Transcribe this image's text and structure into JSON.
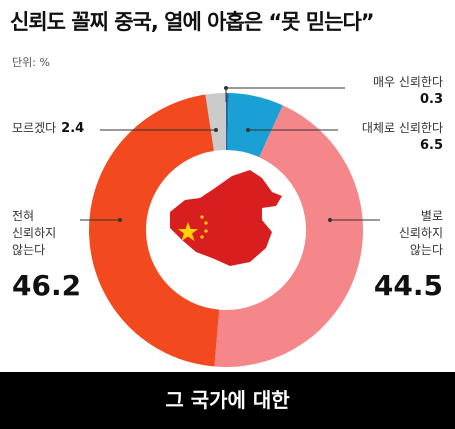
{
  "chart_data": {
    "type": "donut",
    "title": "신뢰도 꼴찌 중국, 열에 아홉은 “못 믿는다”",
    "unit_label": "단위: %",
    "categories": [
      "매우 신뢰한다",
      "대체로 신뢰한다",
      "별로 신뢰하지 않는다",
      "전혀 신뢰하지 않는다",
      "모르겠다"
    ],
    "values": [
      0.3,
      6.5,
      44.5,
      46.2,
      2.4
    ],
    "colors": [
      "#156ea8",
      "#1ba0d6",
      "#f5878b",
      "#f2491f",
      "#cbcbcb"
    ],
    "footer": "그 국가에 대한"
  }
}
